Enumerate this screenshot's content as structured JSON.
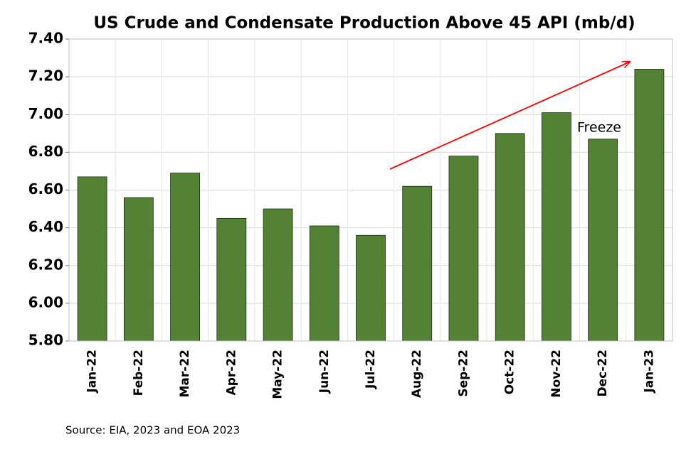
{
  "chart_data": {
    "type": "bar",
    "title": "US Crude and Condensate Production Above 45 API (mb/d)",
    "categories": [
      "Jan-22",
      "Feb-22",
      "Mar-22",
      "Apr-22",
      "May-22",
      "Jun-22",
      "Jul-22",
      "Aug-22",
      "Sep-22",
      "Oct-22",
      "Nov-22",
      "Dec-22",
      "Jan-23"
    ],
    "values": [
      6.67,
      6.56,
      6.69,
      6.45,
      6.5,
      6.41,
      6.36,
      6.62,
      6.78,
      6.9,
      7.01,
      6.87,
      7.24
    ],
    "color": "#548235",
    "ylim": [
      5.8,
      7.4
    ],
    "yticks": [
      {
        "value": 5.8,
        "label": "5.80"
      },
      {
        "value": 6,
        "label": "6.00"
      },
      {
        "value": 6.2,
        "label": "6.20"
      },
      {
        "value": 6.4,
        "label": "6.40"
      },
      {
        "value": 6.6,
        "label": "6.60"
      },
      {
        "value": 6.8,
        "label": "6.80"
      },
      {
        "value": 7,
        "label": "7.00"
      },
      {
        "value": 7.2,
        "label": "7.20"
      },
      {
        "value": 7.4,
        "label": "7.40"
      }
    ],
    "grid": true,
    "annotation": "Freeze",
    "source": "Source: EIA, 2023 and EOA 2023"
  }
}
